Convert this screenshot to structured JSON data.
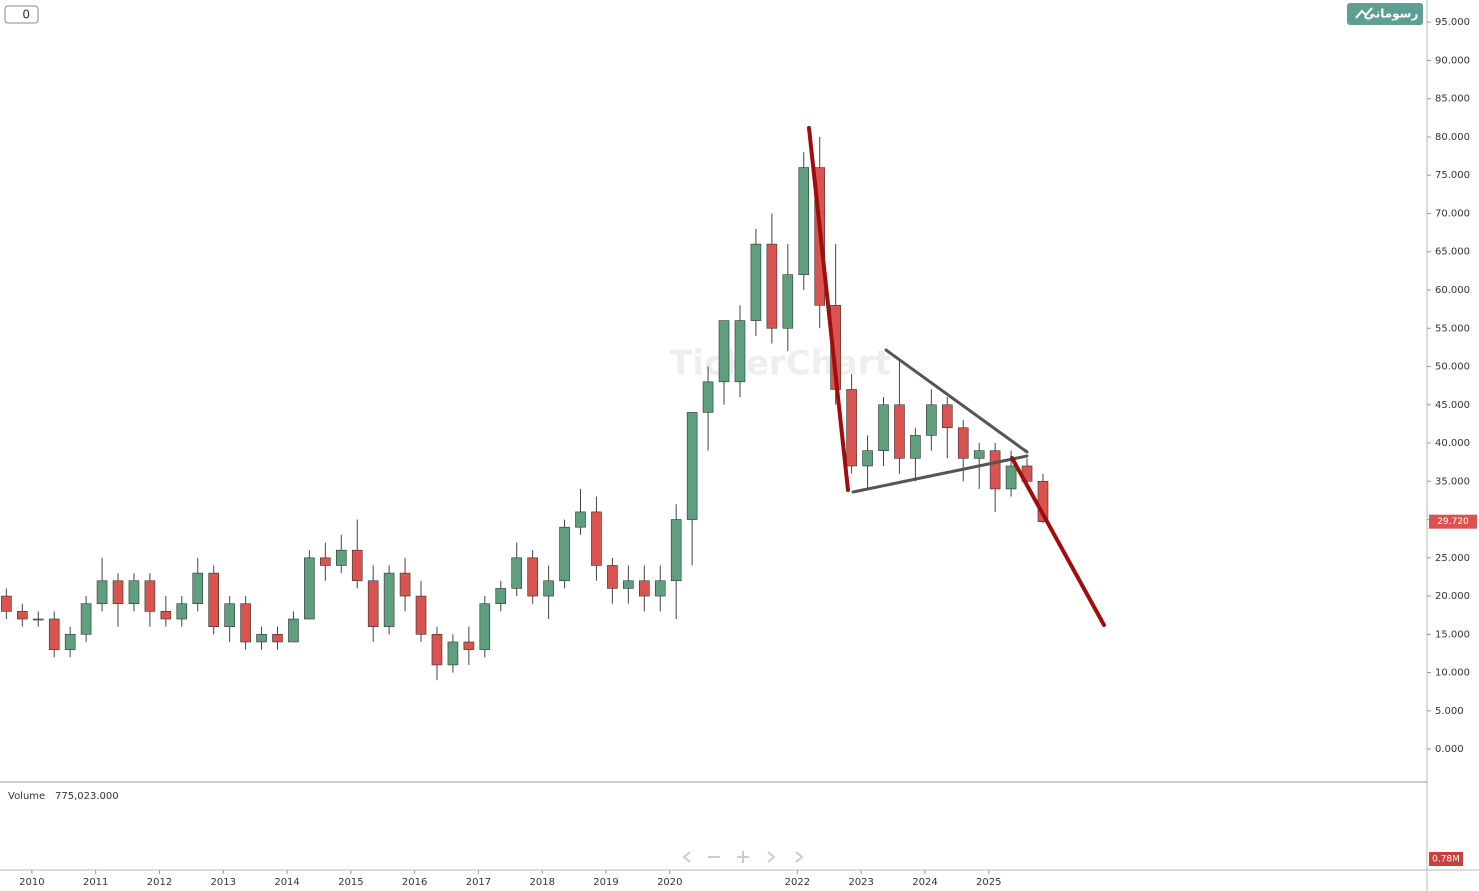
{
  "chart_data": {
    "type": "candlestick",
    "toolbar": {
      "counter": "0",
      "drawings_button": "رسوماتي"
    },
    "watermark": "TickerChart",
    "x": [
      2009.6,
      2009.85,
      2010.1,
      2010.35,
      2010.6,
      2010.85,
      2011.1,
      2011.35,
      2011.6,
      2011.85,
      2012.1,
      2012.35,
      2012.6,
      2012.85,
      2013.1,
      2013.35,
      2013.6,
      2013.85,
      2014.1,
      2014.35,
      2014.6,
      2014.85,
      2015.1,
      2015.35,
      2015.6,
      2015.85,
      2016.1,
      2016.35,
      2016.6,
      2016.85,
      2017.1,
      2017.35,
      2017.6,
      2017.85,
      2018.1,
      2018.35,
      2018.6,
      2018.85,
      2019.1,
      2019.35,
      2019.6,
      2019.85,
      2020.1,
      2020.35,
      2020.6,
      2020.85,
      2021.1,
      2021.35,
      2021.6,
      2021.85,
      2022.1,
      2022.35,
      2022.6,
      2022.85,
      2023.1,
      2023.35,
      2023.6,
      2023.85,
      2024.1,
      2024.35,
      2024.6,
      2024.85,
      2025.1,
      2025.35,
      2025.6,
      2025.85
    ],
    "open": [
      20,
      18,
      17,
      17,
      13,
      15,
      19,
      22,
      19,
      22,
      18,
      17,
      19,
      23,
      16,
      19,
      14,
      15,
      14,
      17,
      25,
      24,
      26,
      22,
      16,
      23,
      20,
      15,
      11,
      14,
      13,
      19,
      21,
      25,
      20,
      22,
      29,
      31,
      24,
      21,
      22,
      20,
      22,
      30,
      44,
      48,
      48,
      56,
      66,
      55,
      62,
      76,
      58,
      47,
      37,
      39,
      45,
      38,
      41,
      45,
      42,
      38,
      39,
      34,
      37,
      35
    ],
    "high": [
      21,
      19,
      18,
      18,
      16,
      20,
      25,
      23,
      23,
      23,
      20,
      20,
      25,
      24,
      20,
      20,
      16,
      16,
      18,
      26,
      27,
      28,
      30,
      24,
      24,
      25,
      22,
      16,
      15,
      16,
      20,
      22,
      27,
      26,
      24,
      30,
      34,
      33,
      25,
      24,
      24,
      24,
      32,
      44,
      50,
      55,
      58,
      68,
      70,
      66,
      78,
      80,
      66,
      49,
      41,
      46,
      51,
      42,
      47,
      46,
      43,
      40,
      40,
      39,
      38,
      36
    ],
    "low": [
      17,
      16,
      16,
      12,
      12,
      14,
      18,
      16,
      18,
      16,
      16,
      16,
      18,
      15,
      14,
      13,
      13,
      13,
      14,
      17,
      22,
      23,
      21,
      14,
      15,
      18,
      14,
      9,
      10,
      11,
      12,
      18,
      20,
      19,
      17,
      21,
      28,
      22,
      19,
      19,
      18,
      18,
      17,
      24,
      39,
      45,
      46,
      54,
      53,
      52,
      60,
      55,
      45,
      36,
      34,
      37,
      36,
      35,
      39,
      38,
      35,
      34,
      31,
      33,
      34,
      29.5
    ],
    "close": [
      18,
      17,
      17,
      13,
      15,
      19,
      22,
      19,
      22,
      18,
      17,
      19,
      23,
      16,
      19,
      14,
      15,
      14,
      17,
      25,
      24,
      26,
      22,
      16,
      23,
      20,
      15,
      11,
      14,
      13,
      19,
      21,
      25,
      20,
      22,
      29,
      31,
      24,
      21,
      22,
      20,
      22,
      30,
      44,
      48,
      56,
      56,
      66,
      55,
      62,
      76,
      58,
      47,
      37,
      39,
      45,
      38,
      41,
      45,
      42,
      38,
      39,
      34,
      37,
      35,
      29.72
    ],
    "up_color": "#5e9f7d",
    "down_color": "#d9534f",
    "last_price": {
      "value": 29.72,
      "label": "29.720"
    },
    "xlim": [
      2009.5,
      2031.87
    ],
    "ylim": [
      -4.3,
      97.9
    ],
    "xticks": [
      2010,
      2011,
      2012,
      2013,
      2014,
      2015,
      2016,
      2017,
      2018,
      2019,
      2020,
      2022,
      2023,
      2024,
      2025
    ],
    "yticks": [
      {
        "value": 0,
        "label": "0.000"
      },
      {
        "value": 5,
        "label": "5.000"
      },
      {
        "value": 10,
        "label": "10.000"
      },
      {
        "value": 15,
        "label": "15.000"
      },
      {
        "value": 20,
        "label": "20.000"
      },
      {
        "value": 25,
        "label": "25.000"
      },
      {
        "value": 30,
        "label": "30.000"
      },
      {
        "value": 35,
        "label": "35.000"
      },
      {
        "value": 40,
        "label": "40.000"
      },
      {
        "value": 45,
        "label": "45.000"
      },
      {
        "value": 50,
        "label": "50.000"
      },
      {
        "value": 55,
        "label": "55.000"
      },
      {
        "value": 60,
        "label": "60.000"
      },
      {
        "value": 65,
        "label": "65.000"
      },
      {
        "value": 70,
        "label": "70.000"
      },
      {
        "value": 75,
        "label": "75.000"
      },
      {
        "value": 80,
        "label": "80.000"
      },
      {
        "value": 85,
        "label": "85.000"
      },
      {
        "value": 90,
        "label": "90.000"
      },
      {
        "value": 95,
        "label": "95.000"
      }
    ],
    "volume": {
      "name": "Volume",
      "value_label": "775,023.000",
      "axis_label": "0.78M"
    }
  }
}
